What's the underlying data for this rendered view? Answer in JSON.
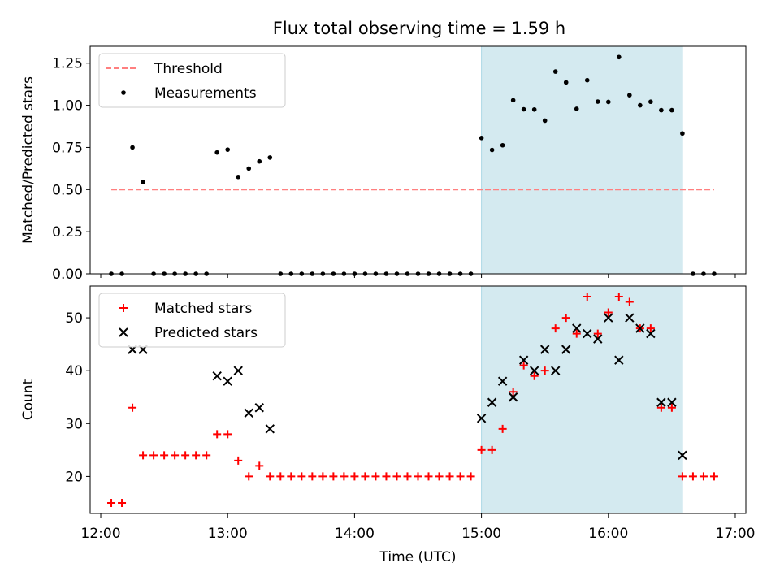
{
  "title": "Flux total observing time = 1.59 h",
  "colors": {
    "threshold": "#ff7f7f",
    "measurement": "#000000",
    "matched": "#ff0000",
    "predicted": "#000000",
    "span_fill": "#d4eaf0",
    "span_edge": "#add8e6"
  },
  "chart_data": [
    {
      "type": "scatter",
      "title": "Flux total observing time = 1.59 h",
      "ylabel": "Matched/Predicted stars",
      "xlabel": "",
      "xlim": [
        "11:55",
        "17:05"
      ],
      "ylim": [
        0,
        1.35
      ],
      "yticks": [
        "0.00",
        "0.25",
        "0.50",
        "0.75",
        "1.00",
        "1.25"
      ],
      "ytick_values": [
        0,
        0.25,
        0.5,
        0.75,
        1.0,
        1.25
      ],
      "highlight_span": [
        "15:00",
        "16:35"
      ],
      "legend": {
        "placement": "upper left",
        "entries": [
          "Threshold",
          "Measurements"
        ]
      },
      "series": [
        {
          "name": "Threshold",
          "kind": "dashed-line",
          "points": [
            [
              "12:05",
              0.5
            ],
            [
              "16:50",
              0.5
            ]
          ]
        },
        {
          "name": "Measurements",
          "kind": "dots",
          "points": [
            [
              "12:05",
              0.0
            ],
            [
              "12:10",
              0.0
            ],
            [
              "12:15",
              0.75
            ],
            [
              "12:20",
              0.545
            ],
            [
              "12:25",
              0.0
            ],
            [
              "12:30",
              0.0
            ],
            [
              "12:35",
              0.0
            ],
            [
              "12:40",
              0.0
            ],
            [
              "12:45",
              0.0
            ],
            [
              "12:50",
              0.0
            ],
            [
              "12:55",
              0.72
            ],
            [
              "13:00",
              0.737
            ],
            [
              "13:05",
              0.575
            ],
            [
              "13:10",
              0.625
            ],
            [
              "13:15",
              0.667
            ],
            [
              "13:20",
              0.69
            ],
            [
              "13:25",
              0.0
            ],
            [
              "13:30",
              0.0
            ],
            [
              "13:35",
              0.0
            ],
            [
              "13:40",
              0.0
            ],
            [
              "13:45",
              0.0
            ],
            [
              "13:50",
              0.0
            ],
            [
              "13:55",
              0.0
            ],
            [
              "14:00",
              0.0
            ],
            [
              "14:05",
              0.0
            ],
            [
              "14:10",
              0.0
            ],
            [
              "14:15",
              0.0
            ],
            [
              "14:20",
              0.0
            ],
            [
              "14:25",
              0.0
            ],
            [
              "14:30",
              0.0
            ],
            [
              "14:35",
              0.0
            ],
            [
              "14:40",
              0.0
            ],
            [
              "14:45",
              0.0
            ],
            [
              "14:50",
              0.0
            ],
            [
              "14:55",
              0.0
            ],
            [
              "15:00",
              0.806
            ],
            [
              "15:05",
              0.735
            ],
            [
              "15:10",
              0.763
            ],
            [
              "15:15",
              1.03
            ],
            [
              "15:20",
              0.976
            ],
            [
              "15:25",
              0.975
            ],
            [
              "15:30",
              0.909
            ],
            [
              "15:35",
              1.2
            ],
            [
              "15:40",
              1.136
            ],
            [
              "15:45",
              0.979
            ],
            [
              "15:50",
              1.149
            ],
            [
              "15:55",
              1.022
            ],
            [
              "16:00",
              1.02
            ],
            [
              "16:05",
              1.286
            ],
            [
              "16:10",
              1.06
            ],
            [
              "16:15",
              1.0
            ],
            [
              "16:20",
              1.021
            ],
            [
              "16:25",
              0.971
            ],
            [
              "16:30",
              0.971
            ],
            [
              "16:35",
              0.833
            ],
            [
              "16:40",
              0.0
            ],
            [
              "16:45",
              0.0
            ],
            [
              "16:50",
              0.0
            ]
          ]
        }
      ]
    },
    {
      "type": "scatter",
      "title": "",
      "ylabel": "Count",
      "xlabel": "Time (UTC)",
      "xlim": [
        "11:55",
        "17:05"
      ],
      "ylim": [
        13,
        56
      ],
      "yticks": [
        "20",
        "30",
        "40",
        "50"
      ],
      "ytick_values": [
        20,
        30,
        40,
        50
      ],
      "xticks": [
        "12:00",
        "13:00",
        "14:00",
        "15:00",
        "16:00",
        "17:00"
      ],
      "highlight_span": [
        "15:00",
        "16:35"
      ],
      "legend": {
        "placement": "upper left",
        "entries": [
          "Matched stars",
          "Predicted stars"
        ]
      },
      "series": [
        {
          "name": "Matched stars",
          "marker": "+",
          "points": [
            [
              "12:05",
              15
            ],
            [
              "12:10",
              15
            ],
            [
              "12:15",
              33
            ],
            [
              "12:20",
              24
            ],
            [
              "12:25",
              24
            ],
            [
              "12:30",
              24
            ],
            [
              "12:35",
              24
            ],
            [
              "12:40",
              24
            ],
            [
              "12:45",
              24
            ],
            [
              "12:50",
              24
            ],
            [
              "12:55",
              28
            ],
            [
              "13:00",
              28
            ],
            [
              "13:05",
              23
            ],
            [
              "13:10",
              20
            ],
            [
              "13:15",
              22
            ],
            [
              "13:20",
              20
            ],
            [
              "13:25",
              20
            ],
            [
              "13:30",
              20
            ],
            [
              "13:35",
              20
            ],
            [
              "13:40",
              20
            ],
            [
              "13:45",
              20
            ],
            [
              "13:50",
              20
            ],
            [
              "13:55",
              20
            ],
            [
              "14:00",
              20
            ],
            [
              "14:05",
              20
            ],
            [
              "14:10",
              20
            ],
            [
              "14:15",
              20
            ],
            [
              "14:20",
              20
            ],
            [
              "14:25",
              20
            ],
            [
              "14:30",
              20
            ],
            [
              "14:35",
              20
            ],
            [
              "14:40",
              20
            ],
            [
              "14:45",
              20
            ],
            [
              "14:50",
              20
            ],
            [
              "14:55",
              20
            ],
            [
              "15:00",
              25
            ],
            [
              "15:05",
              25
            ],
            [
              "15:10",
              29
            ],
            [
              "15:15",
              36
            ],
            [
              "15:20",
              41
            ],
            [
              "15:25",
              39
            ],
            [
              "15:30",
              40
            ],
            [
              "15:35",
              48
            ],
            [
              "15:40",
              50
            ],
            [
              "15:45",
              47
            ],
            [
              "15:50",
              54
            ],
            [
              "15:55",
              47
            ],
            [
              "16:00",
              51
            ],
            [
              "16:05",
              54
            ],
            [
              "16:10",
              53
            ],
            [
              "16:15",
              48
            ],
            [
              "16:20",
              48
            ],
            [
              "16:25",
              33
            ],
            [
              "16:30",
              33
            ],
            [
              "16:35",
              20
            ],
            [
              "16:40",
              20
            ],
            [
              "16:45",
              20
            ],
            [
              "16:50",
              20
            ]
          ]
        },
        {
          "name": "Predicted stars",
          "marker": "x",
          "points": [
            [
              "12:15",
              44
            ],
            [
              "12:20",
              44
            ],
            [
              "12:55",
              39
            ],
            [
              "13:00",
              38
            ],
            [
              "13:05",
              40
            ],
            [
              "13:10",
              32
            ],
            [
              "13:15",
              33
            ],
            [
              "13:20",
              29
            ],
            [
              "15:00",
              31
            ],
            [
              "15:05",
              34
            ],
            [
              "15:10",
              38
            ],
            [
              "15:15",
              35
            ],
            [
              "15:20",
              42
            ],
            [
              "15:25",
              40
            ],
            [
              "15:30",
              44
            ],
            [
              "15:35",
              40
            ],
            [
              "15:40",
              44
            ],
            [
              "15:45",
              48
            ],
            [
              "15:50",
              47
            ],
            [
              "15:55",
              46
            ],
            [
              "16:00",
              50
            ],
            [
              "16:05",
              42
            ],
            [
              "16:10",
              50
            ],
            [
              "16:15",
              48
            ],
            [
              "16:20",
              47
            ],
            [
              "16:25",
              34
            ],
            [
              "16:30",
              34
            ],
            [
              "16:35",
              24
            ]
          ]
        }
      ]
    }
  ]
}
